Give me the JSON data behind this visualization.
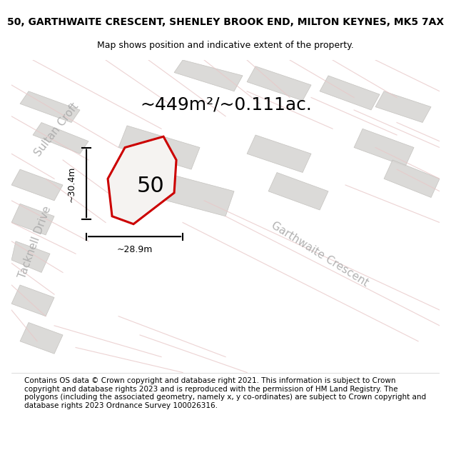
{
  "title_line1": "50, GARTHWAITE CRESCENT, SHENLEY BROOK END, MILTON KEYNES, MK5 7AX",
  "title_line2": "Map shows position and indicative extent of the property.",
  "area_label": "~449m²/~0.111ac.",
  "number_label": "50",
  "dim_vertical": "~30.4m",
  "dim_horizontal": "~28.9m",
  "street_label1": "Sultan Croft",
  "street_label2": "Tacknell Drive",
  "street_label3": "Garthwaite Crescent",
  "footer_text": "Contains OS data © Crown copyright and database right 2021. This information is subject to Crown copyright and database rights 2023 and is reproduced with the permission of HM Land Registry. The polygons (including the associated geometry, namely x, y co-ordinates) are subject to Crown copyright and database rights 2023 Ordnance Survey 100026316.",
  "bg_color": "#f0eeec",
  "map_bg": "#f0eeec",
  "plot_fill": "#e8e6e4",
  "road_color": "#e8c8c8",
  "building_color": "#d8d6d4",
  "highlight_color": "#cc0000",
  "highlight_fill": "#f5f3f1",
  "title_fontsize": 10,
  "subtitle_fontsize": 9,
  "label_fontsize": 18,
  "number_fontsize": 22,
  "street_fontsize": 11,
  "footer_fontsize": 7.5
}
